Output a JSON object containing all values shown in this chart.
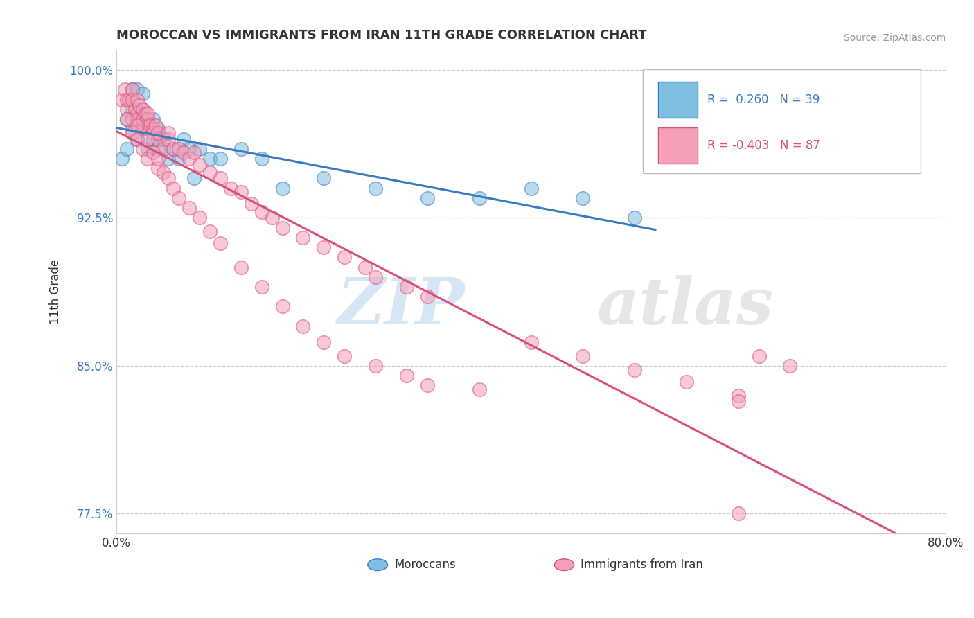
{
  "title": "MOROCCAN VS IMMIGRANTS FROM IRAN 11TH GRADE CORRELATION CHART",
  "source": "Source: ZipAtlas.com",
  "ylabel": "11th Grade",
  "xlim": [
    0.0,
    0.8
  ],
  "ylim": [
    0.765,
    1.01
  ],
  "xticks": [
    0.0,
    0.1,
    0.2,
    0.3,
    0.4,
    0.5,
    0.6,
    0.7,
    0.8
  ],
  "xticklabels": [
    "0.0%",
    "",
    "",
    "",
    "",
    "",
    "",
    "",
    "80.0%"
  ],
  "yticks": [
    0.775,
    0.85,
    0.925,
    1.0
  ],
  "yticklabels": [
    "77.5%",
    "85.0%",
    "92.5%",
    "100.0%"
  ],
  "legend_blue_label": "Moroccans",
  "legend_pink_label": "Immigrants from Iran",
  "r_blue": 0.26,
  "n_blue": 39,
  "r_pink": -0.403,
  "n_pink": 87,
  "watermark_zip": "ZIP",
  "watermark_atlas": "atlas",
  "blue_color": "#7fbfdf",
  "pink_color": "#f4a0b8",
  "blue_line_color": "#3a7bbf",
  "pink_line_color": "#d94f7a",
  "blue_scatter_x": [
    0.005,
    0.01,
    0.01,
    0.015,
    0.015,
    0.015,
    0.02,
    0.02,
    0.02,
    0.025,
    0.025,
    0.025,
    0.03,
    0.03,
    0.03,
    0.035,
    0.035,
    0.04,
    0.04,
    0.045,
    0.05,
    0.055,
    0.06,
    0.065,
    0.07,
    0.075,
    0.08,
    0.09,
    0.1,
    0.12,
    0.14,
    0.16,
    0.2,
    0.25,
    0.3,
    0.35,
    0.4,
    0.45,
    0.5
  ],
  "blue_scatter_y": [
    0.955,
    0.96,
    0.975,
    0.97,
    0.98,
    0.99,
    0.965,
    0.975,
    0.99,
    0.97,
    0.98,
    0.988,
    0.96,
    0.97,
    0.975,
    0.965,
    0.975,
    0.96,
    0.97,
    0.965,
    0.955,
    0.96,
    0.955,
    0.965,
    0.96,
    0.945,
    0.96,
    0.955,
    0.955,
    0.96,
    0.955,
    0.94,
    0.945,
    0.94,
    0.935,
    0.935,
    0.94,
    0.935,
    0.925
  ],
  "pink_scatter_x": [
    0.005,
    0.008,
    0.01,
    0.01,
    0.012,
    0.015,
    0.015,
    0.015,
    0.018,
    0.02,
    0.02,
    0.02,
    0.022,
    0.025,
    0.025,
    0.025,
    0.028,
    0.03,
    0.03,
    0.03,
    0.032,
    0.035,
    0.035,
    0.038,
    0.04,
    0.04,
    0.045,
    0.05,
    0.05,
    0.055,
    0.06,
    0.065,
    0.07,
    0.075,
    0.08,
    0.09,
    0.1,
    0.11,
    0.12,
    0.13,
    0.14,
    0.15,
    0.16,
    0.18,
    0.2,
    0.22,
    0.24,
    0.25,
    0.28,
    0.3,
    0.01,
    0.015,
    0.02,
    0.02,
    0.025,
    0.03,
    0.03,
    0.035,
    0.04,
    0.04,
    0.045,
    0.05,
    0.055,
    0.06,
    0.07,
    0.08,
    0.09,
    0.1,
    0.12,
    0.14,
    0.16,
    0.18,
    0.2,
    0.22,
    0.25,
    0.28,
    0.3,
    0.35,
    0.4,
    0.45,
    0.5,
    0.55,
    0.6,
    0.6,
    0.62,
    0.65,
    0.6
  ],
  "pink_scatter_y": [
    0.985,
    0.99,
    0.985,
    0.98,
    0.985,
    0.985,
    0.975,
    0.99,
    0.98,
    0.985,
    0.978,
    0.975,
    0.982,
    0.98,
    0.97,
    0.975,
    0.978,
    0.97,
    0.975,
    0.978,
    0.972,
    0.97,
    0.968,
    0.972,
    0.965,
    0.968,
    0.96,
    0.965,
    0.968,
    0.96,
    0.96,
    0.958,
    0.955,
    0.958,
    0.952,
    0.948,
    0.945,
    0.94,
    0.938,
    0.932,
    0.928,
    0.925,
    0.92,
    0.915,
    0.91,
    0.905,
    0.9,
    0.895,
    0.89,
    0.885,
    0.975,
    0.968,
    0.972,
    0.965,
    0.96,
    0.965,
    0.955,
    0.958,
    0.95,
    0.955,
    0.948,
    0.945,
    0.94,
    0.935,
    0.93,
    0.925,
    0.918,
    0.912,
    0.9,
    0.89,
    0.88,
    0.87,
    0.862,
    0.855,
    0.85,
    0.845,
    0.84,
    0.838,
    0.862,
    0.855,
    0.848,
    0.842,
    0.835,
    0.832,
    0.855,
    0.85,
    0.775
  ]
}
